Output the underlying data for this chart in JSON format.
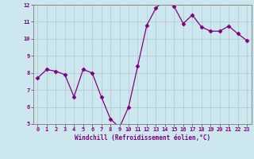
{
  "x": [
    0,
    1,
    2,
    3,
    4,
    5,
    6,
    7,
    8,
    9,
    10,
    11,
    12,
    13,
    14,
    15,
    16,
    17,
    18,
    19,
    20,
    21,
    22,
    23
  ],
  "y": [
    7.7,
    8.2,
    8.1,
    7.9,
    6.6,
    8.2,
    8.0,
    6.6,
    5.3,
    4.8,
    6.0,
    8.4,
    10.8,
    11.8,
    12.3,
    11.9,
    10.9,
    11.4,
    10.7,
    10.45,
    10.45,
    10.75,
    10.3,
    9.9
  ],
  "ylim": [
    5,
    12
  ],
  "xlim": [
    -0.5,
    23.5
  ],
  "yticks": [
    5,
    6,
    7,
    8,
    9,
    10,
    11,
    12
  ],
  "xticks": [
    0,
    1,
    2,
    3,
    4,
    5,
    6,
    7,
    8,
    9,
    10,
    11,
    12,
    13,
    14,
    15,
    16,
    17,
    18,
    19,
    20,
    21,
    22,
    23
  ],
  "xlabel": "Windchill (Refroidissement éolien,°C)",
  "line_color": "#800080",
  "marker_color": "#800080",
  "bg_color": "#cce8ee",
  "grid_color": "#b0c8d0",
  "font_color": "#800080",
  "tick_fontsize": 5.0,
  "xlabel_fontsize": 5.5
}
